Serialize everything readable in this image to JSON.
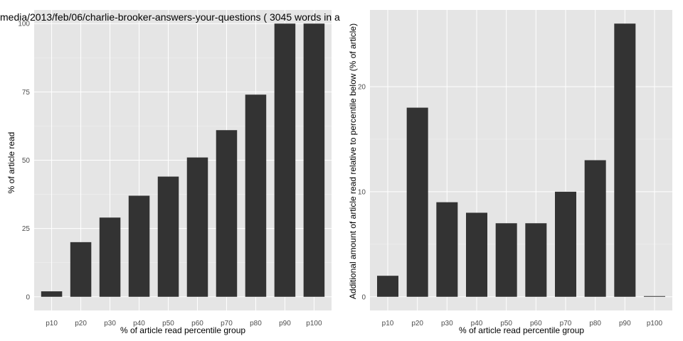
{
  "colors": {
    "panel_bg": "#e5e5e5",
    "grid_major": "#ffffff",
    "grid_minor": "#f2f2f2",
    "bar_fill": "#333333",
    "tick_text": "#4d4d4d"
  },
  "chart_data": [
    {
      "type": "bar",
      "title": "media/2013/feb/06/charlie-brooker-answers-your-questions ( 3045 words in a",
      "xlabel": "% of article read percentile group",
      "ylabel": "% of article read",
      "categories": [
        "p10",
        "p20",
        "p30",
        "p40",
        "p50",
        "p60",
        "p70",
        "p80",
        "p90",
        "p100"
      ],
      "values": [
        2,
        20,
        29,
        37,
        44,
        51,
        61,
        74,
        100,
        100
      ],
      "yticks": [
        0,
        25,
        50,
        75,
        100
      ],
      "ytick_labels": [
        "0",
        "25",
        "50",
        "75",
        "100"
      ],
      "ylim": [
        -5,
        105
      ],
      "grid": true,
      "legend": "none"
    },
    {
      "type": "bar",
      "title": "",
      "xlabel": "% of article read percentile group",
      "ylabel": "Additional amount of article read relative to percentile below (% of article)",
      "categories": [
        "p10",
        "p20",
        "p30",
        "p40",
        "p50",
        "p60",
        "p70",
        "p80",
        "p90",
        "p100"
      ],
      "values": [
        2,
        18,
        9,
        8,
        7,
        7,
        10,
        13,
        26,
        0
      ],
      "yticks": [
        0,
        10,
        20
      ],
      "ytick_labels": [
        "0",
        "10",
        "20"
      ],
      "ylim": [
        -1.3,
        27.3
      ],
      "grid": true,
      "legend": "none"
    }
  ]
}
